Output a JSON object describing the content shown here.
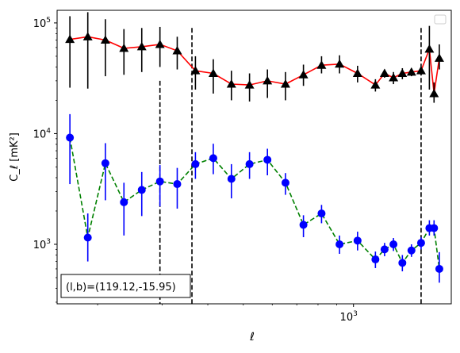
{
  "chart_data": {
    "type": "line",
    "xscale": "log",
    "yscale": "log",
    "xlim": [
      155,
      1850
    ],
    "ylim": [
      290,
      130000
    ],
    "xlabel": "ℓ",
    "ylabel": "C_ℓ  [mK²]",
    "x_ticklabels": [
      {
        "value": 1000,
        "base": "10",
        "exp": "3"
      }
    ],
    "y_ticklabels": [
      {
        "value": 1000,
        "base": "10",
        "exp": "3"
      },
      {
        "value": 10000,
        "base": "10",
        "exp": "4"
      },
      {
        "value": 100000,
        "base": "10",
        "exp": "5"
      }
    ],
    "annotation": "(l,b)=(119.12,-15.95)",
    "legend": "top-right (empty)",
    "series": [
      {
        "marker": "triangle",
        "marker_color": "#000000",
        "line_color": "#ff0000",
        "line_style": "solid",
        "x": [
          168,
          188,
          210,
          236,
          264,
          296,
          330,
          370,
          414,
          464,
          520,
          582,
          652,
          730,
          818,
          916,
          1026,
          1148,
          1286,
          1440,
          1612,
          1716
        ],
        "y": [
          71000,
          75000,
          70000,
          59000,
          61000,
          64000,
          56000,
          37000,
          35000,
          28000,
          27500,
          30000,
          28000,
          34000,
          41500,
          42500,
          35000,
          27500,
          32000,
          36000,
          58000,
          48000
        ],
        "yerr_low": [
          26000,
          25500,
          33000,
          34000,
          36000,
          40000,
          38000,
          25000,
          23000,
          20000,
          19500,
          21000,
          20000,
          27000,
          35000,
          35000,
          29000,
          24000,
          28000,
          33000,
          25000,
          38000
        ],
        "yerr_high": [
          115000,
          125000,
          108000,
          88000,
          90000,
          92000,
          75000,
          50000,
          47000,
          37000,
          35000,
          38000,
          36000,
          42000,
          50000,
          51000,
          41000,
          31000,
          36000,
          39000,
          94000,
          64000
        ],
        "points_extra": [
          {
            "x": 1360,
            "y": 35000,
            "lo": 31000,
            "hi": 39000
          },
          {
            "x": 1216,
            "y": 35000,
            "lo": 32000,
            "hi": 38000
          },
          {
            "x": 1530,
            "y": 37000,
            "lo": 34000,
            "hi": 40000
          },
          {
            "x": 1660,
            "y": 23000,
            "lo": 19000,
            "hi": 29000
          }
        ]
      },
      {
        "marker": "circle",
        "marker_color": "#0000ff",
        "line_color": "#008000",
        "line_style": "dashed",
        "x": [
          168,
          188,
          210,
          236,
          264,
          296,
          330,
          370,
          414,
          464,
          520,
          582,
          652,
          730,
          818,
          916,
          1026,
          1148,
          1216,
          1286,
          1360,
          1440,
          1530,
          1612,
          1660,
          1716
        ],
        "y": [
          9200,
          1150,
          5400,
          2400,
          3100,
          3700,
          3500,
          5300,
          6000,
          3900,
          5300,
          5800,
          3600,
          1500,
          1900,
          1000,
          1080,
          730,
          900,
          1000,
          680,
          880,
          1030,
          1400,
          1400,
          600
        ],
        "yerr_low": [
          3500,
          700,
          2500,
          1200,
          1800,
          2200,
          2100,
          3900,
          4300,
          2600,
          3900,
          4200,
          2800,
          1160,
          1550,
          820,
          880,
          610,
          780,
          870,
          570,
          770,
          900,
          1200,
          1200,
          450
        ],
        "yerr_high": [
          15000,
          1900,
          8200,
          3600,
          4500,
          5200,
          4900,
          6800,
          8100,
          5300,
          6800,
          7300,
          4400,
          1830,
          2270,
          1200,
          1300,
          860,
          1030,
          1140,
          800,
          1000,
          1160,
          1650,
          1650,
          850
        ]
      }
    ],
    "vlines": [
      {
        "x": 296,
        "y_top": 30000
      },
      {
        "x": 362,
        "y_top": 90000
      },
      {
        "x": 1530,
        "y_top": 90000
      }
    ]
  }
}
